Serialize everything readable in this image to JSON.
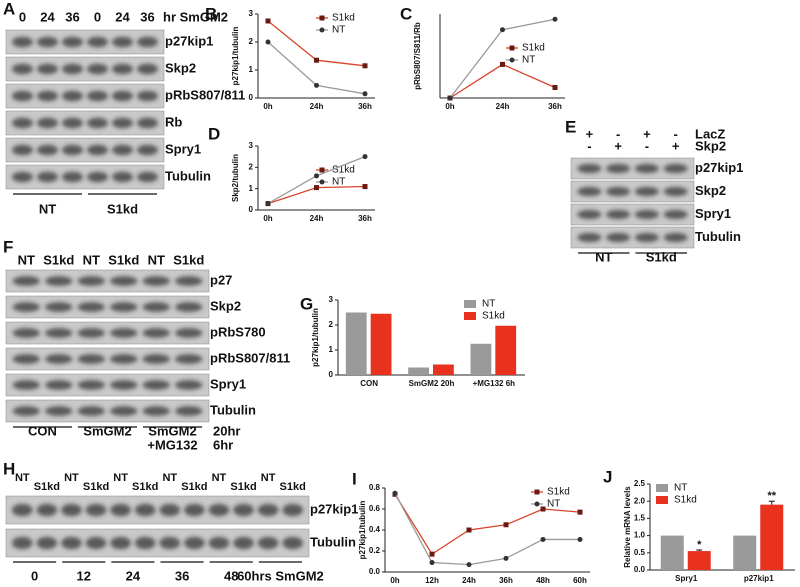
{
  "blots": [
    {
      "panel": "A",
      "header": [
        "0",
        "24",
        "36",
        "0",
        "24",
        "36"
      ],
      "header_unit": "hr SmGM2",
      "rows": [
        "p27kip1",
        "Skp2",
        "pRbS807/811",
        "Rb",
        "Spry1",
        "Tubulin"
      ],
      "groups": [
        "NT",
        "S1kd"
      ]
    },
    {
      "panel": "E",
      "header_rows": [
        {
          "name": "LacZ",
          "marks": [
            "+",
            "-",
            "+",
            "-"
          ]
        },
        {
          "name": "Skp2",
          "marks": [
            "-",
            "+",
            "-",
            "+"
          ]
        }
      ],
      "rows": [
        "p27kip1",
        "Skp2",
        "Spry1",
        "Tubulin"
      ],
      "groups": [
        "NT",
        "S1kd"
      ]
    },
    {
      "panel": "F",
      "header": [
        "NT",
        "S1kd",
        "NT",
        "S1kd",
        "NT",
        "S1kd"
      ],
      "rows": [
        "p27",
        "Skp2",
        "pRbS780",
        "pRbS807/811",
        "Spry1",
        "Tubulin"
      ],
      "groups": [
        "CON",
        "SmGM2",
        "SmGM2"
      ],
      "group_sub": "+MG132",
      "notes": [
        "20hr",
        "6hr"
      ]
    },
    {
      "panel": "H",
      "header": [
        "NT",
        "S1kd",
        "NT",
        "S1kd",
        "NT",
        "S1kd",
        "NT",
        "S1kd",
        "NT",
        "S1kd",
        "NT",
        "S1kd"
      ],
      "rows": [
        "p27kip1",
        "Tubulin"
      ],
      "groups": [
        "0",
        "12",
        "24",
        "36",
        "48",
        "60hrs SmGM2"
      ]
    }
  ],
  "chart_data": [
    {
      "panel": "B",
      "type": "line",
      "ylabel": "p27kip1/tubulin",
      "categories": [
        "0h",
        "24h",
        "36h"
      ],
      "ylim": [
        0,
        3
      ],
      "yticks": [
        0,
        1,
        2,
        3
      ],
      "legend": "upper right",
      "series": [
        {
          "name": "S1kd",
          "color": "#d9442b",
          "marker": "square",
          "values": [
            2.75,
            1.35,
            1.15
          ]
        },
        {
          "name": "NT",
          "color": "#9a9a9a",
          "marker": "circle",
          "values": [
            2.0,
            0.45,
            0.15
          ]
        }
      ]
    },
    {
      "panel": "C",
      "type": "line",
      "ylabel": "pRbS807/S811/Rb",
      "categories": [
        "0h",
        "24h",
        "36h"
      ],
      "ylim": [
        0,
        0.8
      ],
      "legend": "center right",
      "series": [
        {
          "name": "S1kd",
          "color": "#d9442b",
          "marker": "square",
          "values": [
            0,
            0.32,
            0.1
          ]
        },
        {
          "name": "NT",
          "color": "#9a9a9a",
          "marker": "circle",
          "values": [
            0,
            0.65,
            0.75
          ]
        }
      ]
    },
    {
      "panel": "D",
      "type": "line",
      "ylabel": "Skp2/tubulin",
      "categories": [
        "0h",
        "24h",
        "36h"
      ],
      "ylim": [
        0,
        3
      ],
      "yticks": [
        0,
        1,
        2,
        3
      ],
      "legend": "center right",
      "series": [
        {
          "name": "S1kd",
          "color": "#d9442b",
          "marker": "square",
          "values": [
            0.3,
            1.05,
            1.1
          ]
        },
        {
          "name": "NT",
          "color": "#9a9a9a",
          "marker": "circle",
          "values": [
            0.3,
            1.6,
            2.5
          ]
        }
      ]
    },
    {
      "panel": "G",
      "type": "bar",
      "ylabel": "p27kip1/tubulin",
      "categories": [
        "CON",
        "SmGM2 20h",
        "+MG132 6h"
      ],
      "ylim": [
        0,
        3
      ],
      "yticks": [
        0,
        1,
        2,
        3
      ],
      "legend": "upper right",
      "series": [
        {
          "name": "NT",
          "color": "#9a9a9a",
          "values": [
            2.5,
            0.3,
            1.25
          ]
        },
        {
          "name": "S1kd",
          "color": "#e8321e",
          "values": [
            2.45,
            0.42,
            1.97
          ]
        }
      ]
    },
    {
      "panel": "I",
      "type": "line",
      "ylabel": "p27kip1/tubulin",
      "categories": [
        "0h",
        "12h",
        "24h",
        "36h",
        "48h",
        "60h"
      ],
      "ylim": [
        0,
        0.8
      ],
      "yticks": [
        {
          "value": 0,
          "label": "0.0"
        },
        0.2,
        0.4,
        0.6,
        0.8
      ],
      "legend": "upper right",
      "series": [
        {
          "name": "S1kd",
          "color": "#d9442b",
          "marker": "square",
          "values": [
            0.74,
            0.17,
            0.4,
            0.45,
            0.6,
            0.57
          ]
        },
        {
          "name": "NT",
          "color": "#9a9a9a",
          "marker": "circle",
          "values": [
            0.75,
            0.09,
            0.07,
            0.13,
            0.31,
            0.31
          ]
        }
      ]
    },
    {
      "panel": "J",
      "type": "bar",
      "ylabel": "Relative mRNA levels",
      "categories": [
        "Spry1",
        "p27kip1"
      ],
      "ylim": [
        0,
        2.5
      ],
      "yticks": [
        {
          "value": 0,
          "label": "0.0"
        },
        0.5,
        {
          "value": 1,
          "label": "1.0"
        },
        1.5,
        {
          "value": 2,
          "label": "2.0"
        },
        2.5
      ],
      "legend": "upper left",
      "series": [
        {
          "name": "NT",
          "color": "#9a9a9a",
          "values": [
            1,
            1
          ]
        },
        {
          "name": "S1kd",
          "color": "#e8321e",
          "values": [
            0.55,
            1.9
          ],
          "errors": [
            0.03,
            0.1
          ],
          "annotations": [
            "*",
            "**"
          ]
        }
      ]
    }
  ]
}
